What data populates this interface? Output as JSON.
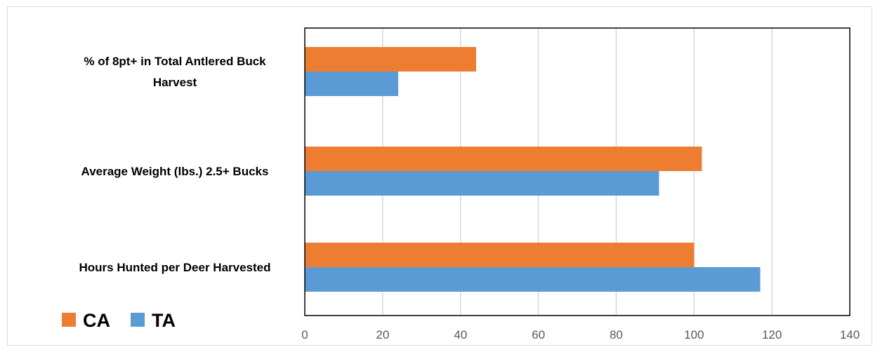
{
  "chart_data": {
    "type": "bar",
    "orientation": "horizontal",
    "categories": [
      "% of 8pt+ in Total Antlered Buck Harvest",
      "Average Weight (lbs.) 2.5+ Bucks",
      "Hours Hunted per Deer Harvested"
    ],
    "category_lines": [
      [
        "% of 8pt+ in Total Antlered Buck",
        "Harvest"
      ],
      [
        "Average Weight (lbs.) 2.5+ Bucks"
      ],
      [
        "Hours Hunted per Deer Harvested"
      ]
    ],
    "series": [
      {
        "name": "CA",
        "color": "#ed7d31",
        "values": [
          44,
          102,
          100
        ]
      },
      {
        "name": "TA",
        "color": "#5b9bd5",
        "values": [
          24,
          91,
          117
        ]
      }
    ],
    "xlim": [
      0,
      140
    ],
    "ticks": [
      "0",
      "20",
      "40",
      "60",
      "80",
      "100",
      "120",
      "140"
    ],
    "grid": true,
    "legend_position": "bottom-left",
    "title": "",
    "xlabel": "",
    "ylabel": ""
  }
}
